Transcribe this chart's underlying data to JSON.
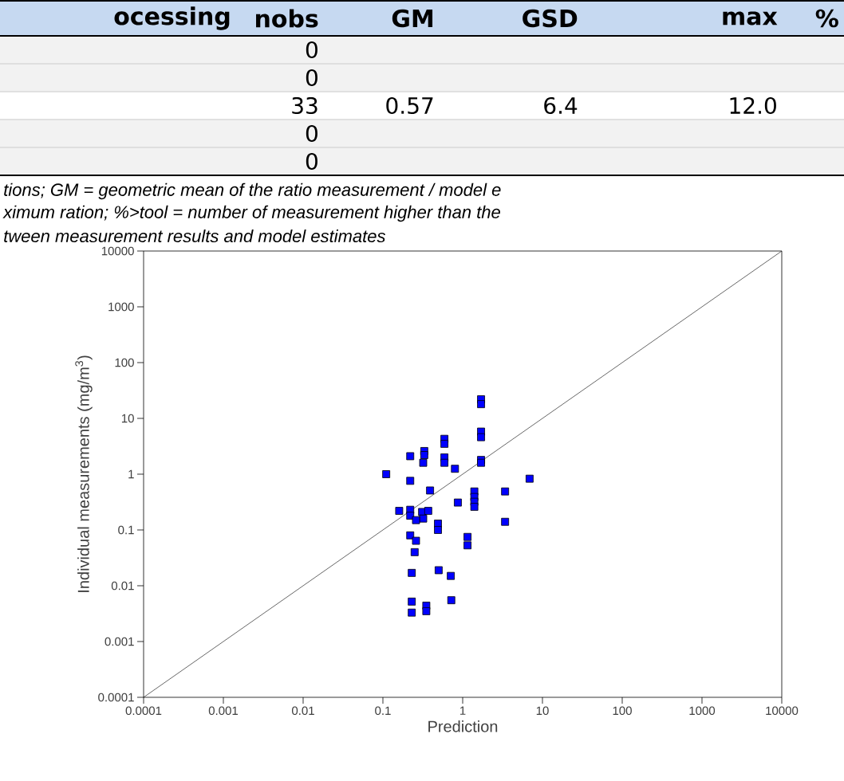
{
  "chart_data": {
    "type": "scatter",
    "xlabel": "Prediction",
    "ylabel": "Individual measurements (mg/m$^{3}$)",
    "log": "xy",
    "xlim": [
      0.0001,
      10000
    ],
    "ylim": [
      0.0001,
      10000
    ],
    "xticks": [
      0.0001,
      0.001,
      0.01,
      0.1,
      1,
      10,
      100,
      1000,
      10000
    ],
    "yticks": [
      0.0001,
      0.001,
      0.01,
      0.1,
      1,
      10,
      100,
      1000,
      10000
    ],
    "grid": false,
    "series": [
      {
        "color": "#0000ff",
        "marker": "square",
        "x": [
          1.7,
          1.7,
          1.7,
          1.7,
          0.59,
          0.59,
          0.33,
          0.33,
          0.22,
          0.59,
          0.59,
          1.7,
          1.7,
          0.32,
          0.8,
          0.11,
          0.22,
          6.9,
          0.39,
          3.4,
          1.4,
          1.4,
          1.4,
          1.4,
          0.87,
          0.22,
          0.22,
          0.31,
          0.16,
          0.37,
          0.32,
          0.26,
          0.49,
          0.49,
          3.4,
          1.15,
          1.15,
          0.22,
          0.26,
          0.25,
          0.23,
          0.5,
          0.71,
          0.72,
          0.23,
          0.35,
          0.35,
          0.23
        ],
        "values": [
          22,
          18,
          5.8,
          4.6,
          4.3,
          3.5,
          2.6,
          2.2,
          2.1,
          2.0,
          1.6,
          1.8,
          1.6,
          1.6,
          1.25,
          1.0,
          0.76,
          0.83,
          0.51,
          0.49,
          0.49,
          0.39,
          0.32,
          0.26,
          0.31,
          0.23,
          0.18,
          0.21,
          0.22,
          0.22,
          0.16,
          0.15,
          0.13,
          0.1,
          0.14,
          0.075,
          0.053,
          0.08,
          0.064,
          0.04,
          0.017,
          0.019,
          0.015,
          0.0055,
          0.0052,
          0.0044,
          0.0035,
          0.0033
        ]
      },
      {
        "type": "line",
        "marker": "none",
        "color": "#000000",
        "x": [
          0.0001,
          10000
        ],
        "values": [
          0.0001,
          10000
        ]
      }
    ],
    "annotations": [
      "ocessing",
      "nobs",
      "GM",
      "GSD",
      "max",
      "%",
      "0",
      "0",
      "33",
      "0.57",
      "6.4",
      "12.0",
      "0",
      "0",
      "tions; GM = geometric mean of the ratio measurement / model e",
      "ximum ration; %>tool = number of measurement higher than the",
      "tween measurement results and model estimates"
    ]
  }
}
